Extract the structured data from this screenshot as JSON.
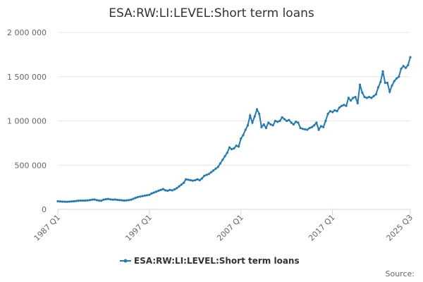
{
  "chart_data": {
    "type": "line",
    "title": "ESA:RW:LI:LEVEL:Short term loans",
    "categories": [
      "1987 Q1",
      null,
      null,
      null,
      null,
      null,
      null,
      null,
      null,
      null,
      null,
      null,
      null,
      null,
      null,
      null,
      null,
      null,
      null,
      null,
      null,
      null,
      null,
      null,
      null,
      null,
      null,
      null,
      null,
      null,
      null,
      null,
      null,
      null,
      null,
      null,
      null,
      null,
      null,
      null,
      "1997 Q1",
      null,
      null,
      null,
      null,
      null,
      null,
      null,
      null,
      null,
      null,
      null,
      null,
      null,
      null,
      null,
      null,
      null,
      null,
      null,
      null,
      null,
      null,
      null,
      null,
      null,
      null,
      null,
      null,
      null,
      null,
      null,
      null,
      null,
      null,
      null,
      null,
      null,
      null,
      null,
      "2007 Q1",
      null,
      null,
      null,
      null,
      null,
      null,
      null,
      null,
      null,
      null,
      null,
      null,
      null,
      null,
      null,
      null,
      null,
      null,
      null,
      null,
      null,
      null,
      null,
      null,
      null,
      null,
      null,
      null,
      null,
      null,
      null,
      null,
      null,
      null,
      null,
      null,
      null,
      null,
      null,
      "2017 Q1",
      null,
      null,
      null,
      null,
      null,
      null,
      null,
      null,
      null,
      null,
      null,
      null,
      null,
      null,
      null,
      null,
      null,
      null,
      null,
      null,
      null,
      null,
      null,
      null,
      null,
      null,
      null,
      null,
      null,
      null,
      null,
      null,
      null,
      "2025 Q3"
    ],
    "series": [
      {
        "name": "ESA:RW:LI:LEVEL:Short term loans",
        "color": "#1f7bb6",
        "values": [
          92000,
          90000,
          88000,
          87000,
          86000,
          88000,
          90000,
          92000,
          95000,
          98000,
          100000,
          99000,
          100000,
          102000,
          105000,
          110000,
          112000,
          105000,
          100000,
          98000,
          110000,
          115000,
          118000,
          113000,
          110000,
          112000,
          108000,
          105000,
          103000,
          100000,
          102000,
          105000,
          110000,
          120000,
          130000,
          140000,
          145000,
          150000,
          155000,
          160000,
          165000,
          180000,
          190000,
          200000,
          210000,
          220000,
          230000,
          215000,
          210000,
          220000,
          215000,
          225000,
          240000,
          260000,
          280000,
          300000,
          340000,
          335000,
          330000,
          325000,
          330000,
          340000,
          330000,
          350000,
          380000,
          390000,
          400000,
          420000,
          440000,
          460000,
          480000,
          520000,
          560000,
          600000,
          640000,
          700000,
          680000,
          690000,
          720000,
          710000,
          800000,
          840000,
          900000,
          950000,
          1060000,
          980000,
          1050000,
          1130000,
          1080000,
          930000,
          960000,
          920000,
          980000,
          960000,
          950000,
          1000000,
          990000,
          1000000,
          1040000,
          1020000,
          1000000,
          1010000,
          980000,
          960000,
          990000,
          980000,
          920000,
          910000,
          905000,
          900000,
          920000,
          930000,
          950000,
          980000,
          900000,
          940000,
          930000,
          1000000,
          1080000,
          1110000,
          1100000,
          1120000,
          1110000,
          1150000,
          1170000,
          1180000,
          1170000,
          1260000,
          1230000,
          1260000,
          1270000,
          1200000,
          1410000,
          1320000,
          1270000,
          1260000,
          1270000,
          1260000,
          1280000,
          1300000,
          1380000,
          1440000,
          1560000,
          1430000,
          1430000,
          1330000,
          1400000,
          1450000,
          1480000,
          1500000,
          1590000,
          1620000,
          1600000,
          1630000,
          1720000
        ]
      }
    ],
    "ylim": [
      0,
      2000000
    ],
    "yticks": [
      0,
      {
        "value": 500000,
        "label": "500 000"
      },
      {
        "value": 1000000,
        "label": "1 000 000"
      },
      {
        "value": 1500000,
        "label": "1 500 000"
      },
      {
        "value": 2000000,
        "label": "2 000 000"
      }
    ],
    "grid": true,
    "legend": "bottom",
    "source": "Source:"
  }
}
